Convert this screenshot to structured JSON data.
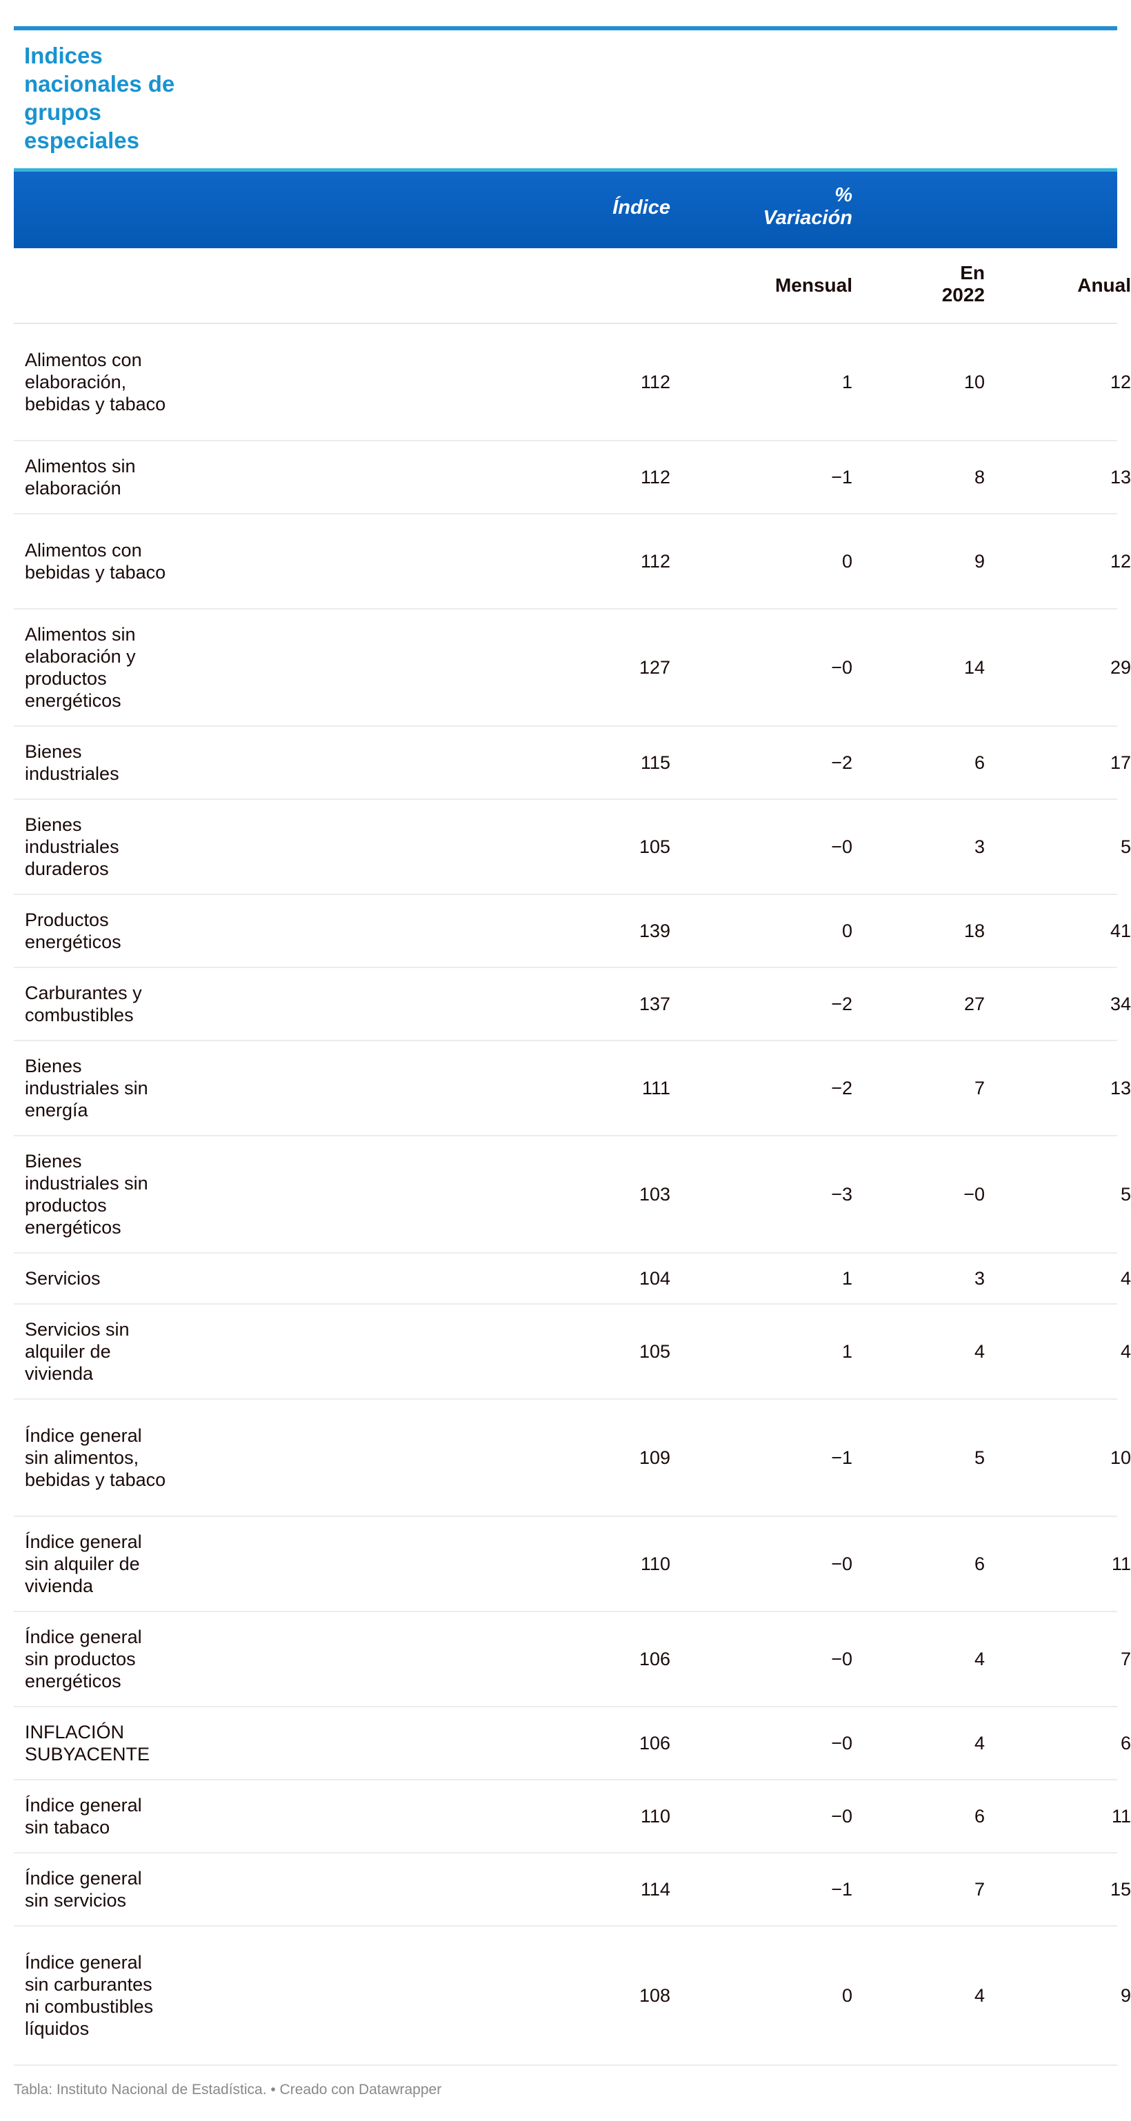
{
  "title": "Indices nacionales de grupos especiales",
  "header": {
    "indice": "Índice",
    "variacion": "% Variación",
    "mensual": "Mensual",
    "en2022": "En 2022",
    "anual": "Anual"
  },
  "rows": [
    {
      "label": "Alimentos con elaboración, bebidas y tabaco",
      "indice": "112",
      "mensual": "1",
      "en2022": "10",
      "anual": "12"
    },
    {
      "label": "Alimentos sin elaboración",
      "indice": "112",
      "mensual": "−1",
      "en2022": "8",
      "anual": "13"
    },
    {
      "label": "Alimentos con bebidas y tabaco",
      "indice": "112",
      "mensual": "0",
      "en2022": "9",
      "anual": "12"
    },
    {
      "label": "Alimentos sin elaboración y productos energéticos",
      "indice": "127",
      "mensual": "−0",
      "en2022": "14",
      "anual": "29"
    },
    {
      "label": "Bienes industriales",
      "indice": "115",
      "mensual": "−2",
      "en2022": "6",
      "anual": "17"
    },
    {
      "label": "Bienes industriales duraderos",
      "indice": "105",
      "mensual": "−0",
      "en2022": "3",
      "anual": "5"
    },
    {
      "label": "Productos energéticos",
      "indice": "139",
      "mensual": "0",
      "en2022": "18",
      "anual": "41"
    },
    {
      "label": "Carburantes y combustibles",
      "indice": "137",
      "mensual": "−2",
      "en2022": "27",
      "anual": "34"
    },
    {
      "label": "Bienes industriales sin energía",
      "indice": "111",
      "mensual": "−2",
      "en2022": "7",
      "anual": "13"
    },
    {
      "label": "Bienes industriales sin productos energéticos",
      "indice": "103",
      "mensual": "−3",
      "en2022": "−0",
      "anual": "5"
    },
    {
      "label": "Servicios",
      "indice": "104",
      "mensual": "1",
      "en2022": "3",
      "anual": "4"
    },
    {
      "label": "Servicios sin alquiler de vivienda",
      "indice": "105",
      "mensual": "1",
      "en2022": "4",
      "anual": "4"
    },
    {
      "label": "Índice general sin alimentos, bebidas y tabaco",
      "indice": "109",
      "mensual": "−1",
      "en2022": "5",
      "anual": "10"
    },
    {
      "label": "Índice general sin alquiler de vivienda",
      "indice": "110",
      "mensual": "−0",
      "en2022": "6",
      "anual": "11"
    },
    {
      "label": "Índice general sin productos energéticos",
      "indice": "106",
      "mensual": "−0",
      "en2022": "4",
      "anual": "7"
    },
    {
      "label": "INFLACIÓN SUBYACENTE",
      "indice": "106",
      "mensual": "−0",
      "en2022": "4",
      "anual": "6"
    },
    {
      "label": "Índice general sin tabaco",
      "indice": "110",
      "mensual": "−0",
      "en2022": "6",
      "anual": "11"
    },
    {
      "label": "Índice general sin servicios",
      "indice": "114",
      "mensual": "−1",
      "en2022": "7",
      "anual": "15"
    },
    {
      "label": "Índice general sin carburantes ni combustibles líquidos",
      "indice": "108",
      "mensual": "0",
      "en2022": "4",
      "anual": "9"
    }
  ],
  "footer": "Tabla: Instituto Nacional de Estadística. • Creado con Datawrapper",
  "colors": {
    "title": "#1893d0",
    "header_bg": "#0559b4",
    "top_rule": "#1f8fd2"
  }
}
